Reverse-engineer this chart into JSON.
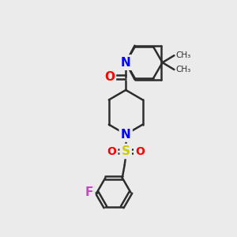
{
  "bg_color": "#ebebeb",
  "bond_color": "#2d2d2d",
  "N_color": "#0000ff",
  "O_color": "#ff0000",
  "S_color": "#cccc00",
  "F_color": "#cc44cc",
  "line_width": 1.8,
  "font_size": 11,
  "fig_width": 3.0,
  "fig_height": 3.0,
  "dpi": 100,
  "xlim": [
    0,
    10
  ],
  "ylim": [
    0,
    10
  ]
}
